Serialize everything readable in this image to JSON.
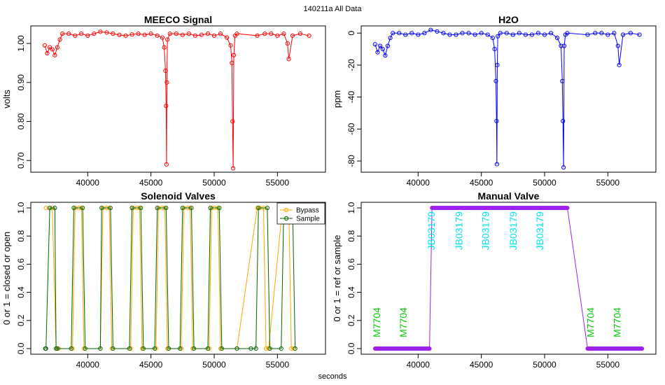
{
  "suptitle": "140211a   All Data",
  "xlabel": "seconds",
  "chart_data": [
    {
      "id": "meeco",
      "type": "scatter",
      "title": "MEECO Signal",
      "ylabel": "volts",
      "color": "#ff0000",
      "xlim": [
        35500,
        58800
      ],
      "ylim": [
        0.67,
        1.045
      ],
      "xticks": [
        40000,
        45000,
        50000,
        55000
      ],
      "yticks": [
        0.7,
        0.8,
        0.9,
        1.0
      ],
      "ytick_labels": [
        "0.70",
        "0.80",
        "0.90",
        "1.00"
      ],
      "x": [
        36600,
        36800,
        37000,
        37200,
        37400,
        37600,
        37800,
        38000,
        38500,
        39000,
        39500,
        40000,
        40500,
        41000,
        41500,
        42000,
        42500,
        43000,
        43500,
        44000,
        44500,
        45000,
        45500,
        45900,
        46050,
        46150,
        46200,
        46230,
        46260,
        46300,
        46500,
        47000,
        47500,
        48000,
        48500,
        49000,
        49500,
        50000,
        50500,
        51000,
        51300,
        51400,
        51450,
        51500,
        51550,
        51650,
        51800,
        53400,
        54000,
        54500,
        55000,
        55500,
        55800,
        55900,
        56200,
        56800,
        57500
      ],
      "y": [
        0.995,
        0.975,
        0.99,
        0.985,
        0.97,
        0.99,
        1.01,
        1.025,
        1.025,
        1.02,
        1.025,
        1.02,
        1.025,
        1.03,
        1.028,
        1.025,
        1.022,
        1.02,
        1.023,
        1.025,
        1.022,
        1.025,
        1.02,
        1.015,
        0.99,
        0.93,
        0.84,
        0.69,
        0.9,
        1.01,
        1.025,
        1.025,
        1.022,
        1.025,
        1.02,
        1.022,
        1.025,
        1.02,
        1.025,
        1.015,
        0.995,
        0.95,
        0.8,
        0.68,
        0.97,
        1.02,
        1.025,
        1.02,
        1.025,
        1.025,
        1.02,
        1.025,
        1.0,
        0.96,
        1.02,
        1.025,
        1.02
      ]
    },
    {
      "id": "h2o",
      "type": "scatter",
      "title": "H2O",
      "ylabel": "ppm",
      "color": "#0000ff",
      "xlim": [
        35500,
        58800
      ],
      "ylim": [
        -87,
        4.5
      ],
      "xticks": [
        40000,
        45000,
        50000,
        55000
      ],
      "yticks": [
        -80,
        -60,
        -40,
        -20,
        0
      ],
      "ytick_labels": [
        "-80",
        "-60",
        "-40",
        "-20",
        "0"
      ],
      "x": [
        36600,
        36800,
        37000,
        37200,
        37400,
        37600,
        37800,
        38000,
        38500,
        39000,
        39500,
        40000,
        40500,
        41000,
        41500,
        42000,
        42500,
        43000,
        43500,
        44000,
        44500,
        45000,
        45500,
        45900,
        46050,
        46150,
        46200,
        46230,
        46260,
        46300,
        46500,
        47000,
        47500,
        48000,
        48500,
        49000,
        49500,
        50000,
        50500,
        51000,
        51300,
        51400,
        51450,
        51500,
        51550,
        51650,
        51800,
        53400,
        54000,
        54500,
        55000,
        55500,
        55800,
        55900,
        56200,
        56800,
        57500
      ],
      "y": [
        -7,
        -12,
        -8,
        -10,
        -14,
        -8,
        -3,
        0,
        0,
        -1,
        0,
        -1,
        0,
        2,
        1,
        0,
        -1,
        -1,
        0,
        0,
        -1,
        0,
        -1,
        -3,
        -10,
        -30,
        -55,
        -82,
        -20,
        -2,
        0,
        0,
        -1,
        0,
        -1,
        -1,
        0,
        -1,
        0,
        -3,
        -8,
        -30,
        -55,
        -84,
        -8,
        -1,
        0,
        -1,
        0,
        0,
        -1,
        0,
        -8,
        -20,
        -1,
        0,
        -1
      ]
    },
    {
      "id": "solenoid",
      "type": "line",
      "title": "Solenoid Valves",
      "ylabel": "0 or 1 = closed or open",
      "xlim": [
        35500,
        58800
      ],
      "ylim": [
        -0.04,
        1.04
      ],
      "xticks": [
        40000,
        45000,
        50000,
        55000
      ],
      "yticks": [
        0.0,
        0.2,
        0.4,
        0.6,
        0.8,
        1.0
      ],
      "ytick_labels": [
        "0.0",
        "0.2",
        "0.4",
        "0.6",
        "0.8",
        "1.0"
      ],
      "legend_position": "top-right",
      "series": [
        {
          "name": "Bypass",
          "color": "#ffa500",
          "x": [
            36700,
            37000,
            37200,
            37500,
            37700,
            38800,
            39000,
            39300,
            39500,
            39700,
            41000,
            41200,
            41500,
            41700,
            41900,
            43400,
            43600,
            43900,
            44100,
            44300,
            45400,
            45600,
            45900,
            46100,
            46300,
            47400,
            47600,
            47900,
            48100,
            48300,
            49600,
            49800,
            50000,
            50300,
            50500,
            51800,
            53400,
            53600,
            53900,
            54100,
            54300,
            55400,
            55600,
            55900,
            56100,
            56300
          ],
          "y": [
            1,
            1,
            1,
            0,
            0,
            0,
            1,
            1,
            1,
            0,
            0,
            1,
            1,
            1,
            0,
            0,
            1,
            1,
            1,
            0,
            0,
            1,
            1,
            1,
            0,
            0,
            1,
            1,
            1,
            0,
            0,
            1,
            1,
            1,
            0,
            0,
            1,
            1,
            1,
            0,
            0,
            1,
            1,
            1,
            0,
            0
          ]
        },
        {
          "name": "Sample",
          "color": "#006400",
          "x": [
            36650,
            36700,
            37000,
            37400,
            37500,
            37600,
            38700,
            38900,
            39600,
            39800,
            41000,
            41100,
            41800,
            42000,
            43300,
            43500,
            44200,
            44400,
            45300,
            45500,
            46200,
            46400,
            47300,
            47500,
            48200,
            48400,
            49500,
            49700,
            50400,
            50600,
            51800,
            52900,
            53300,
            53500,
            54200,
            54400,
            55300,
            55500,
            56200,
            56400
          ],
          "y": [
            0,
            0,
            1,
            1,
            0,
            0,
            0,
            1,
            1,
            0,
            0,
            1,
            1,
            0,
            0,
            1,
            1,
            0,
            0,
            1,
            1,
            0,
            0,
            1,
            1,
            0,
            0,
            1,
            1,
            0,
            0,
            0,
            0,
            1,
            1,
            0,
            0,
            1,
            1,
            0
          ]
        }
      ]
    },
    {
      "id": "manual",
      "type": "line",
      "title": "Manual Valve",
      "ylabel": "0 or 1 = ref or sample",
      "xlim": [
        35500,
        58800
      ],
      "ylim": [
        -0.04,
        1.04
      ],
      "xticks": [
        40000,
        45000,
        50000,
        55000
      ],
      "yticks": [
        0.0,
        0.2,
        0.4,
        0.6,
        0.8,
        1.0
      ],
      "ytick_labels": [
        "0.0",
        "0.2",
        "0.4",
        "0.6",
        "0.8",
        "1.0"
      ],
      "color": "#a020f0",
      "x": [
        36600,
        40900,
        41100,
        51800,
        53400,
        57700
      ],
      "y": [
        0,
        0,
        1,
        1,
        0,
        0
      ],
      "annotations": [
        {
          "text": "M7704",
          "x": 37000,
          "y": 0.08,
          "color": "#00cc00"
        },
        {
          "text": "M7704",
          "x": 39100,
          "y": 0.08,
          "color": "#00cc00"
        },
        {
          "text": "JB03179",
          "x": 41300,
          "y": 0.7,
          "color": "#00e5ee"
        },
        {
          "text": "JB03179",
          "x": 43500,
          "y": 0.7,
          "color": "#00e5ee"
        },
        {
          "text": "JB03179",
          "x": 45600,
          "y": 0.7,
          "color": "#00e5ee"
        },
        {
          "text": "JB03179",
          "x": 47800,
          "y": 0.7,
          "color": "#00e5ee"
        },
        {
          "text": "JB03179",
          "x": 49900,
          "y": 0.7,
          "color": "#00e5ee"
        },
        {
          "text": "M7704",
          "x": 53900,
          "y": 0.08,
          "color": "#00cc00"
        },
        {
          "text": "M7704",
          "x": 56000,
          "y": 0.08,
          "color": "#00cc00"
        }
      ]
    }
  ]
}
